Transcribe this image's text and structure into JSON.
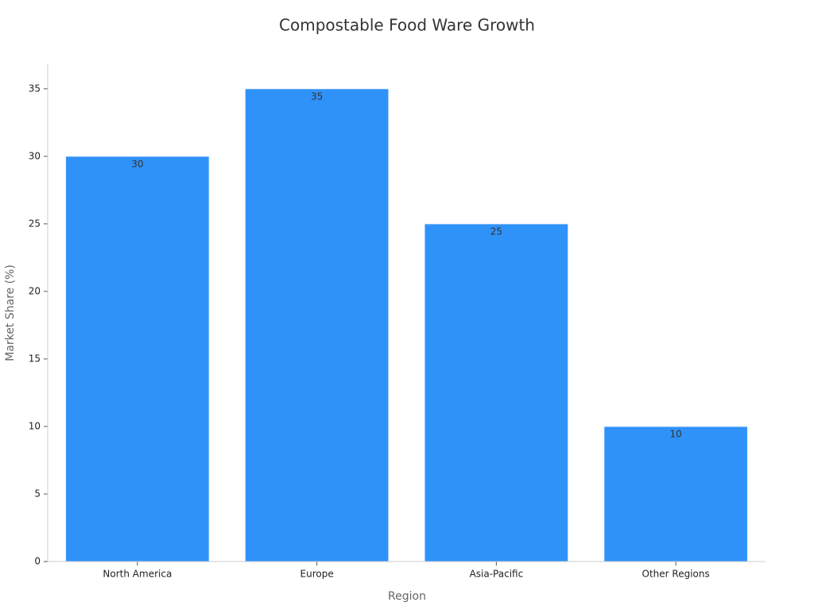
{
  "chart_data": {
    "type": "bar",
    "title": "Compostable Food Ware Growth",
    "x_label": "Region",
    "y_label": "Market Share (%)",
    "categories": [
      "North America",
      "Europe",
      "Asia-Pacific",
      "Other Regions"
    ],
    "values": [
      30,
      35,
      25,
      10
    ],
    "color": "#2f92f8",
    "ylim": [
      0,
      36.75
    ],
    "yticks": [
      0,
      5,
      10,
      15,
      20,
      25,
      30,
      35
    ],
    "grid": false
  }
}
